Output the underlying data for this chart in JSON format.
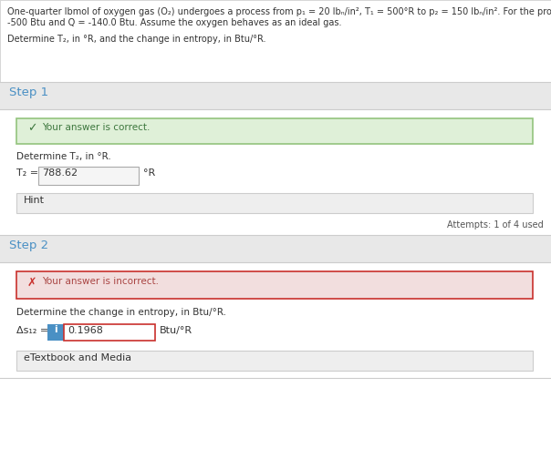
{
  "bg_color": "#e8e8e8",
  "white": "#ffffff",
  "problem_text_line1": "One-quarter lbmol of oxygen gas (O₂) undergoes a process from p₁ = 20 lbₙ/in², T₁ = 500°R to p₂ = 150 lbₙ/in². For the process W =",
  "problem_text_line2": "-500 Btu and Q = -140.0 Btu. Assume the oxygen behaves as an ideal gas.",
  "problem_text_line3": "Determine T₂, in °R, and the change in entropy, in Btu/°R.",
  "step1_label": "Step 1",
  "step1_color": "#4a90c4",
  "step1_correct_bg": "#dff0d8",
  "step1_correct_border": "#93c47d",
  "step1_correct_check_color": "#3c763d",
  "step1_subtext": "Determine T₂, in °R.",
  "step1_input_value": "788.62",
  "step1_input_unit": "°R",
  "step1_hint_text": "Hint",
  "step1_hint_bg": "#eeeeee",
  "attempts_text": "Attempts: 1 of 4 used",
  "step2_label": "Step 2",
  "step2_color": "#4a90c4",
  "step2_incorrect_bg": "#f2dede",
  "step2_incorrect_border": "#c9302c",
  "step2_incorrect_x_color": "#c9302c",
  "step2_subtext": "Determine the change in entropy, in Btu/°R.",
  "step2_info_icon_bg": "#4a90c4",
  "step2_info_icon_text": "i",
  "step2_input_value": "0.1968",
  "step2_input_border": "#c9302c",
  "step2_input_unit": "Btu/°R",
  "step2_etextbook_text": "eTextbook and Media",
  "step2_etextbook_bg": "#eeeeee",
  "sep_color": "#cccccc",
  "text_color": "#333333",
  "input_bg": "#f5f5f5"
}
